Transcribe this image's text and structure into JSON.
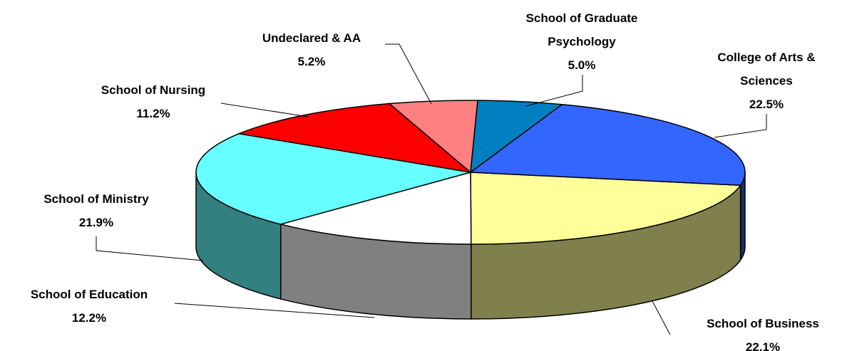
{
  "chart_data": {
    "type": "pie3d",
    "categories": [
      "School of Business",
      "School of Education",
      "School of Ministry",
      "School of Nursing",
      "Undeclared & AA",
      "School of Graduate Psychology",
      "College of Arts & Sciences"
    ],
    "values": [
      22.1,
      12.2,
      21.9,
      11.2,
      5.2,
      5.0,
      22.5
    ],
    "value_labels": [
      "22.1%",
      "12.2%",
      "21.9%",
      "11.2%",
      "5.2%",
      "5.0%",
      "22.5%"
    ],
    "colors": [
      "#ffff99",
      "#ffffff",
      "#66ffff",
      "#ff0000",
      "#ff8080",
      "#0080c0",
      "#3366ff"
    ]
  }
}
